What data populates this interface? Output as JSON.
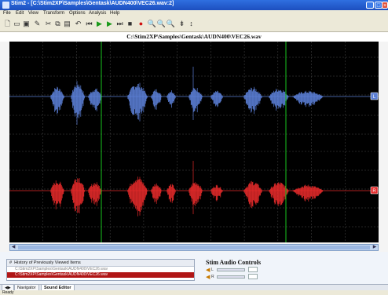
{
  "window": {
    "title": "Stim2 - [C:\\Stim2XP\\Samples\\Gentask\\AUDN400\\VEC26.wav:2]"
  },
  "menu": {
    "items": [
      "File",
      "Edit",
      "View",
      "Transform",
      "Options",
      "Analysis",
      "Help"
    ]
  },
  "toolbar": {
    "icons": [
      "new-icon",
      "open-icon",
      "save-icon",
      "record-icon",
      "cut-icon",
      "copy-icon",
      "paste-icon",
      "undo-icon",
      "go-start-icon",
      "play-icon",
      "play-selection-icon",
      "go-end-icon",
      "stop-icon",
      "record-dot-icon",
      "zoom-in-icon",
      "zoom-in-x-icon",
      "zoom-out-icon",
      "zoom-in-y-icon",
      "zoom-out-y-icon"
    ]
  },
  "file_path": "C:\\Stim2XP\\Samples\\Gentask\\AUDN400\\VEC26.wav",
  "waveform": {
    "channels": [
      {
        "label": "L",
        "color": "#5b7fd6"
      },
      {
        "label": "R",
        "color": "#e42a2a"
      }
    ],
    "grid_color": "#4a4a4a",
    "marker_color": "#19c21e"
  },
  "history": {
    "header": "History of Previously Viewed Items",
    "items": [
      {
        "text": "C:\\Stim2XP\\Samples\\Gentask\\AUDN400\\VEC26.wav",
        "selected": false
      },
      {
        "text": "C:\\Stim2XP\\Samples\\Gentask\\AUDN400\\VEC26.wav",
        "selected": true
      }
    ]
  },
  "audio_controls": {
    "title": "Stim Audio Controls",
    "channels": [
      "L",
      "R"
    ]
  },
  "tabs": [
    {
      "label": "Navigator",
      "active": false
    },
    {
      "label": "Sound Editor",
      "active": true
    }
  ],
  "status": {
    "ready": "Ready",
    "fields": [
      "",
      "",
      "",
      "",
      ""
    ]
  },
  "colors": {
    "titlebar": "#1d4fbf",
    "selected_row": "#b01616",
    "left_channel": "#5b7fd6",
    "right_channel": "#e42a2a",
    "cursor_marker": "#19c21e"
  }
}
